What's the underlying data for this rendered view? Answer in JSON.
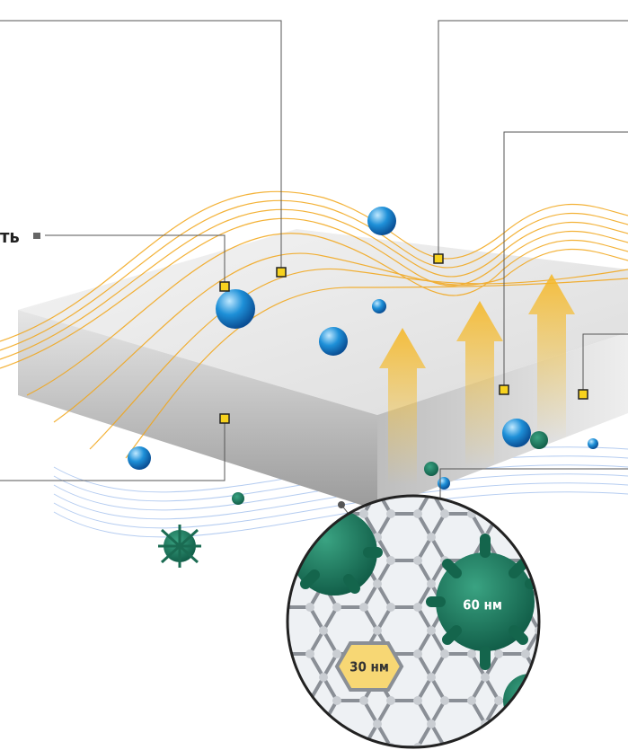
{
  "labels": {
    "left_label": "ть",
    "virus_size": "60 нм",
    "pore_size": "30 нм"
  }
}
